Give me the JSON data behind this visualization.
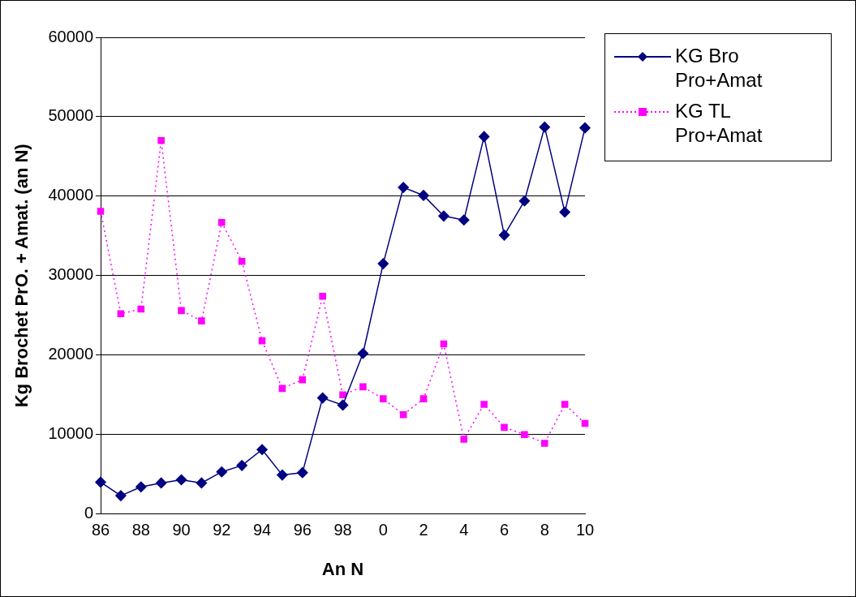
{
  "chart_data": {
    "type": "line",
    "xlabel": "An N",
    "ylabel": "Kg Brochet PrO. + Amat. (an N)",
    "categories": [
      "86",
      null,
      "88",
      null,
      "90",
      null,
      "92",
      null,
      "94",
      null,
      "96",
      null,
      "98",
      null,
      "0",
      null,
      "2",
      null,
      "4",
      null,
      "6",
      null,
      "8",
      null,
      "10"
    ],
    "series": [
      {
        "name": "KG Bro Pro+Amat",
        "color": "#000080",
        "marker": "diamond",
        "line_style": "solid",
        "values": [
          4000,
          2300,
          3400,
          3900,
          4300,
          3900,
          5300,
          6100,
          8100,
          4900,
          5200,
          14600,
          13700,
          20200,
          31500,
          41100,
          40100,
          37500,
          37000,
          47500,
          35100,
          39400,
          48700,
          38000,
          48600
        ]
      },
      {
        "name": "KG TL Pro+Amat",
        "color": "#ff00ff",
        "marker": "square",
        "line_style": "dotted",
        "values": [
          38100,
          25200,
          25800,
          47000,
          25600,
          24300,
          36700,
          31800,
          21800,
          15800,
          16900,
          27400,
          15000,
          16000,
          14500,
          12500,
          14500,
          21400,
          9400,
          13800,
          10900,
          10000,
          8900,
          13800,
          11400
        ]
      }
    ],
    "ylim": [
      0,
      60000
    ],
    "yticks": [
      0,
      10000,
      20000,
      30000,
      40000,
      50000,
      60000
    ],
    "grid": "y",
    "legend": "top right"
  }
}
